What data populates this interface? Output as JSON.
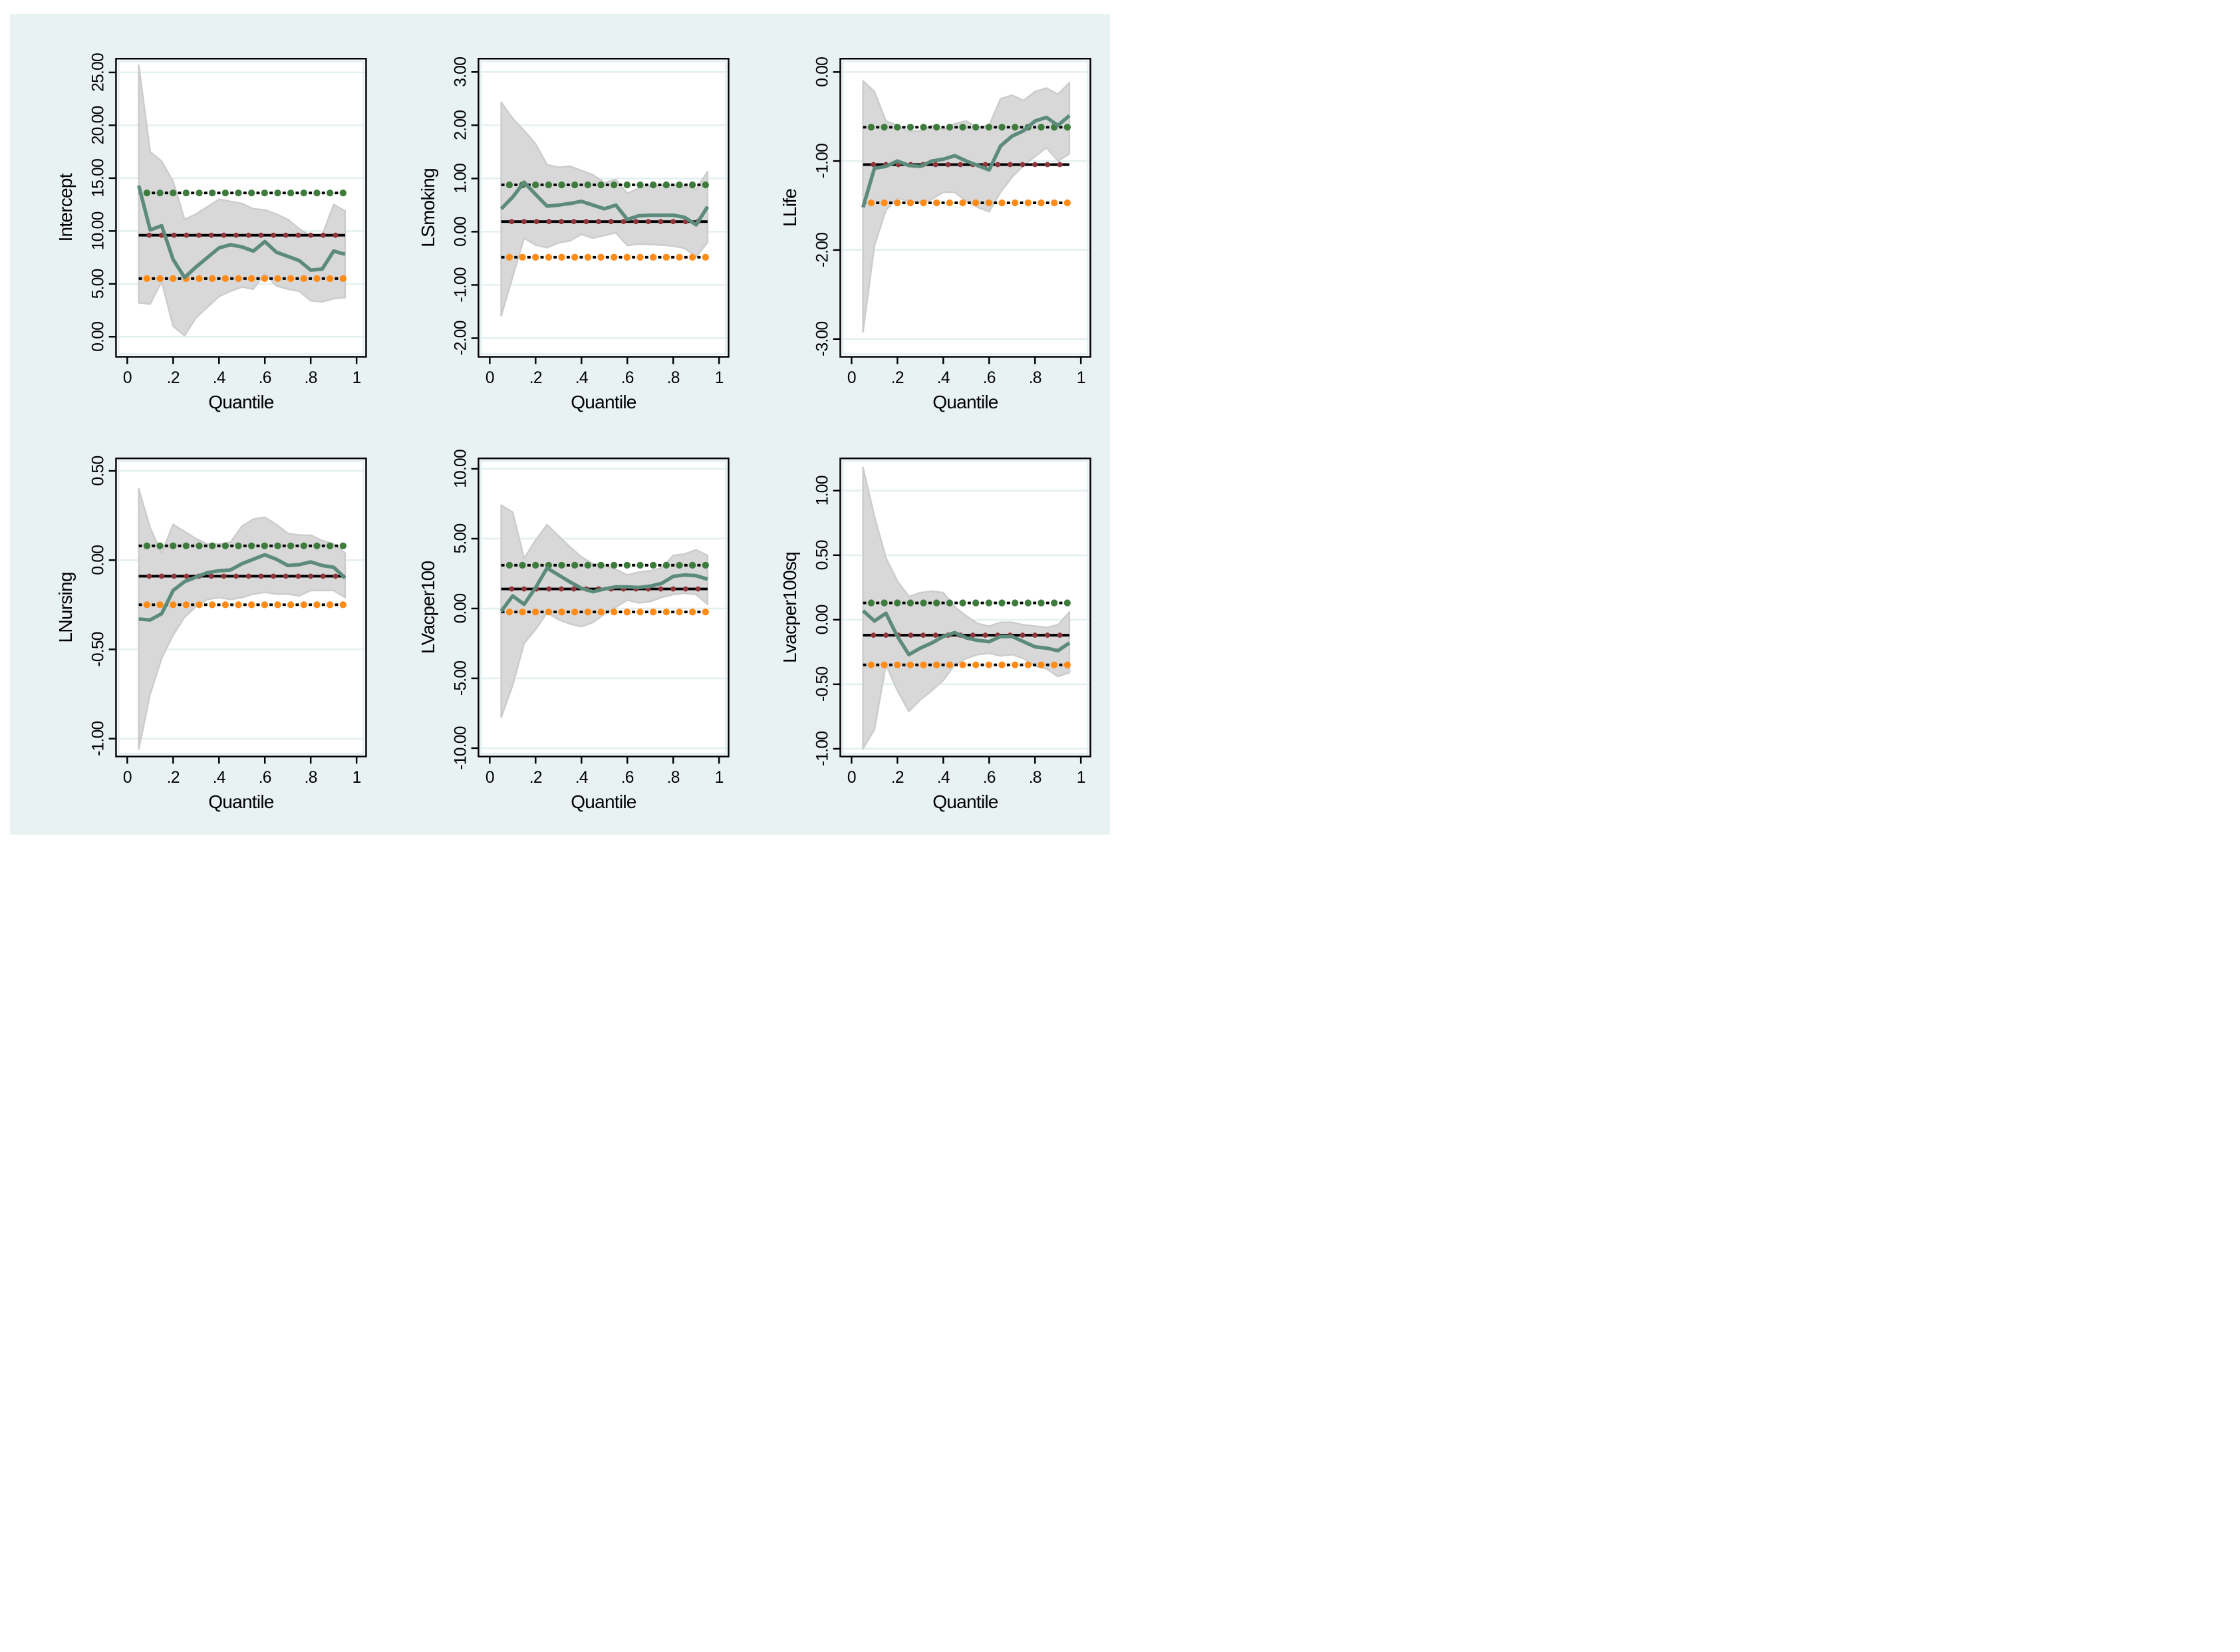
{
  "figure": {
    "x_axis": {
      "label": "Quantile",
      "tick_labels": [
        "0",
        ".2",
        ".4",
        ".6",
        ".8",
        "1"
      ],
      "tick_values": [
        0,
        0.2,
        0.4,
        0.6,
        0.8,
        1
      ],
      "xlim": [
        -0.049,
        1.0415
      ]
    },
    "quantiles": [
      0.05,
      0.1,
      0.15,
      0.2,
      0.25,
      0.3,
      0.35,
      0.4,
      0.45,
      0.5,
      0.55,
      0.6,
      0.65,
      0.7,
      0.75,
      0.8,
      0.85,
      0.9,
      0.95
    ],
    "colors": {
      "background": "#E9F2F2",
      "plot_background": "#FFFFFF",
      "gridline": "#E2EFF0",
      "frame": "#000000",
      "estimate_line": "#5C8B7C",
      "ci_band_fill": "#D8D8D8",
      "ci_band_edge": "#CCCCCC",
      "ref_dash_black": "#000000",
      "ols_dot": "#90353B",
      "upper_ci_dot": "#3E7C3E",
      "lower_ci_dot": "#FF8C19"
    }
  },
  "chart_data": [
    {
      "type": "line",
      "ylabel": "Intercept",
      "yticks": [
        0,
        5,
        10,
        15,
        20,
        25
      ],
      "ylim": [
        -1.9,
        26.3
      ],
      "estimate": [
        14.3,
        10.1,
        10.5,
        7.3,
        5.6,
        6.6,
        7.5,
        8.4,
        8.7,
        8.5,
        8.1,
        9.0,
        8.0,
        7.6,
        7.2,
        6.3,
        6.4,
        8.1,
        7.8
      ],
      "ci_upper": [
        25.7,
        17.5,
        16.6,
        14.7,
        11.1,
        11.6,
        12.3,
        13.0,
        12.8,
        12.6,
        12.1,
        12.0,
        11.6,
        11.1,
        10.2,
        9.5,
        9.6,
        12.5,
        11.9
      ],
      "ci_lower": [
        3.2,
        3.1,
        5.2,
        1.0,
        0.1,
        1.8,
        2.8,
        3.8,
        4.3,
        4.7,
        4.5,
        6.0,
        4.8,
        4.5,
        4.3,
        3.4,
        3.3,
        3.6,
        3.7
      ],
      "ref_lines": {
        "ols": 9.6,
        "upper": 13.6,
        "lower": 5.5
      }
    },
    {
      "type": "line",
      "ylabel": "LSmoking",
      "yticks": [
        -2,
        -1,
        0,
        1,
        2,
        3
      ],
      "ylim": [
        -2.35,
        3.25
      ],
      "estimate": [
        0.43,
        0.65,
        0.93,
        0.7,
        0.48,
        0.5,
        0.53,
        0.57,
        0.5,
        0.43,
        0.5,
        0.23,
        0.3,
        0.31,
        0.31,
        0.31,
        0.27,
        0.13,
        0.47
      ],
      "ci_upper": [
        2.43,
        2.13,
        1.9,
        1.65,
        1.26,
        1.21,
        1.23,
        1.15,
        1.07,
        0.92,
        0.98,
        0.72,
        0.82,
        0.86,
        0.87,
        0.87,
        0.85,
        0.8,
        1.13
      ],
      "ci_lower": [
        -1.58,
        -0.85,
        -0.12,
        -0.25,
        -0.3,
        -0.21,
        -0.17,
        -0.05,
        -0.12,
        -0.07,
        -0.02,
        -0.26,
        -0.23,
        -0.24,
        -0.25,
        -0.27,
        -0.31,
        -0.47,
        -0.2
      ],
      "ref_lines": {
        "ols": 0.19,
        "upper": 0.88,
        "lower": -0.48
      }
    },
    {
      "type": "line",
      "ylabel": "LLife",
      "yticks": [
        -3,
        -2,
        -1,
        0
      ],
      "ylim": [
        -3.2,
        0.15
      ],
      "estimate": [
        -1.52,
        -1.08,
        -1.06,
        -1.0,
        -1.05,
        -1.06,
        -1.0,
        -0.98,
        -0.94,
        -1.0,
        -1.05,
        -1.1,
        -0.83,
        -0.72,
        -0.66,
        -0.55,
        -0.51,
        -0.6,
        -0.49
      ],
      "ci_upper": [
        -0.1,
        -0.22,
        -0.55,
        -0.6,
        -0.67,
        -0.66,
        -0.6,
        -0.65,
        -0.58,
        -0.55,
        -0.62,
        -0.6,
        -0.3,
        -0.26,
        -0.32,
        -0.22,
        -0.18,
        -0.25,
        -0.12
      ],
      "ci_lower": [
        -2.92,
        -1.95,
        -1.55,
        -1.42,
        -1.45,
        -1.47,
        -1.43,
        -1.35,
        -1.35,
        -1.45,
        -1.52,
        -1.57,
        -1.35,
        -1.18,
        -1.05,
        -0.95,
        -0.85,
        -1.0,
        -0.92
      ],
      "ref_lines": {
        "ols": -1.04,
        "upper": -0.62,
        "lower": -1.47
      }
    },
    {
      "type": "line",
      "ylabel": "LNursing",
      "yticks": [
        -1,
        -0.5,
        0,
        0.5
      ],
      "ylim": [
        -1.1,
        0.57
      ],
      "estimate": [
        -0.33,
        -0.335,
        -0.3,
        -0.17,
        -0.12,
        -0.095,
        -0.07,
        -0.06,
        -0.055,
        -0.02,
        0.005,
        0.03,
        0.005,
        -0.03,
        -0.025,
        -0.01,
        -0.03,
        -0.04,
        -0.1
      ],
      "ci_upper": [
        0.4,
        0.18,
        0.04,
        0.2,
        0.16,
        0.12,
        0.09,
        0.09,
        0.1,
        0.19,
        0.23,
        0.24,
        0.2,
        0.15,
        0.14,
        0.14,
        0.11,
        0.09,
        0.04
      ],
      "ci_lower": [
        -1.06,
        -0.75,
        -0.55,
        -0.42,
        -0.32,
        -0.26,
        -0.22,
        -0.21,
        -0.22,
        -0.21,
        -0.19,
        -0.18,
        -0.19,
        -0.19,
        -0.2,
        -0.17,
        -0.17,
        -0.17,
        -0.21
      ],
      "ref_lines": {
        "ols": -0.09,
        "upper": 0.08,
        "lower": -0.25
      }
    },
    {
      "type": "line",
      "ylabel": "LVacper100",
      "yticks": [
        -10,
        -5,
        0,
        5,
        10
      ],
      "ylim": [
        -10.6,
        10.75
      ],
      "estimate": [
        -0.2,
        0.9,
        0.3,
        1.5,
        2.9,
        2.4,
        1.9,
        1.45,
        1.2,
        1.4,
        1.55,
        1.55,
        1.5,
        1.6,
        1.8,
        2.3,
        2.4,
        2.35,
        2.1
      ],
      "ci_upper": [
        7.4,
        6.9,
        3.6,
        4.9,
        6.0,
        5.2,
        4.4,
        3.7,
        3.2,
        3.1,
        2.8,
        2.4,
        2.6,
        2.7,
        2.9,
        3.8,
        3.9,
        4.2,
        3.8
      ],
      "ci_lower": [
        -7.8,
        -5.5,
        -2.5,
        -1.5,
        -0.3,
        -0.8,
        -1.1,
        -1.3,
        -1.0,
        -0.4,
        0.1,
        0.6,
        0.4,
        0.5,
        0.8,
        1.0,
        1.1,
        1.0,
        0.3
      ],
      "ref_lines": {
        "ols": 1.4,
        "upper": 3.1,
        "lower": -0.25
      }
    },
    {
      "type": "line",
      "ylabel": "Lvacper100sq",
      "yticks": [
        -1,
        -0.5,
        0,
        0.5,
        1
      ],
      "ylim": [
        -1.06,
        1.25
      ],
      "estimate": [
        0.07,
        -0.01,
        0.05,
        -0.13,
        -0.27,
        -0.22,
        -0.18,
        -0.13,
        -0.1,
        -0.14,
        -0.16,
        -0.17,
        -0.13,
        -0.13,
        -0.17,
        -0.21,
        -0.22,
        -0.24,
        -0.18
      ],
      "ci_upper": [
        1.18,
        0.8,
        0.48,
        0.3,
        0.18,
        0.21,
        0.22,
        0.21,
        0.1,
        0.03,
        -0.03,
        -0.05,
        -0.02,
        -0.02,
        -0.04,
        -0.05,
        -0.06,
        -0.04,
        0.06
      ],
      "ci_lower": [
        -1.0,
        -0.85,
        -0.35,
        -0.55,
        -0.71,
        -0.62,
        -0.55,
        -0.47,
        -0.35,
        -0.3,
        -0.27,
        -0.26,
        -0.28,
        -0.27,
        -0.3,
        -0.36,
        -0.38,
        -0.44,
        -0.41
      ],
      "ref_lines": {
        "ols": -0.12,
        "upper": 0.13,
        "lower": -0.35
      }
    }
  ]
}
